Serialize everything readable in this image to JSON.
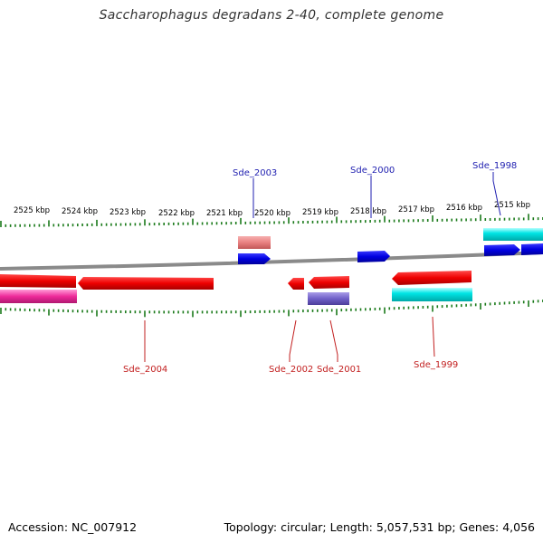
{
  "title": "Saccharophagus degradans 2-40, complete genome",
  "footer": {
    "accession": "Accession: NC_007912",
    "summary": "Topology: circular; Length: 5,057,531 bp; Genes: 4,056"
  },
  "scale": {
    "unit": "kbp",
    "labels": [
      {
        "kbp": 2525,
        "text": "2525 kbp"
      },
      {
        "kbp": 2524,
        "text": "2524 kbp"
      },
      {
        "kbp": 2523,
        "text": "2523 kbp"
      },
      {
        "kbp": 2522,
        "text": "2522 kbp"
      },
      {
        "kbp": 2521,
        "text": "2521 kbp"
      },
      {
        "kbp": 2520,
        "text": "2520 kbp"
      },
      {
        "kbp": 2519,
        "text": "2519 kbp"
      },
      {
        "kbp": 2518,
        "text": "2518 kbp"
      },
      {
        "kbp": 2517,
        "text": "2517 kbp"
      },
      {
        "kbp": 2516,
        "text": "2516 kbp"
      },
      {
        "kbp": 2515,
        "text": "2515 kbp"
      }
    ]
  },
  "genes": [
    {
      "id": "Sde_2004",
      "label": "Sde_2004",
      "strand": "reverse"
    },
    {
      "id": "Sde_2003",
      "label": "Sde_2003",
      "strand": "forward"
    },
    {
      "id": "Sde_2002",
      "label": "Sde_2002",
      "strand": "reverse"
    },
    {
      "id": "Sde_2001",
      "label": "Sde_2001",
      "strand": "reverse"
    },
    {
      "id": "Sde_2000",
      "label": "Sde_2000",
      "strand": "forward"
    },
    {
      "id": "Sde_1999",
      "label": "Sde_1999",
      "strand": "reverse"
    },
    {
      "id": "Sde_1998",
      "label": "Sde_1998",
      "strand": "forward"
    }
  ],
  "colors": {
    "backbone": "#8a8a8a",
    "ticks": "#1a7a1a",
    "forward_cds": "#0000e0",
    "reverse_cds": "#ee0000",
    "forward_label": "#1f1fb0",
    "reverse_label": "#c21f1f",
    "feature_cyan": "#00e5e5",
    "feature_pink": "#ee2a9a",
    "feature_lightred": "#e98080",
    "feature_purple": "#7060c8"
  }
}
